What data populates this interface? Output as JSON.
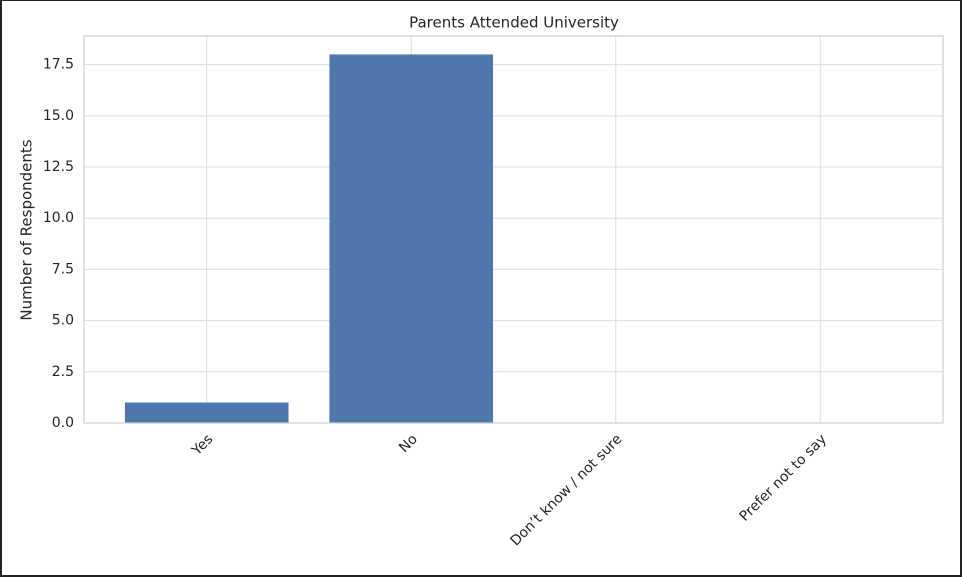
{
  "chart_data": {
    "type": "bar",
    "title": "Parents Attended University",
    "y_label": "Number of Respondents",
    "categories": [
      "Yes",
      "No",
      "Don’t know / not sure",
      "Prefer not to say"
    ],
    "values": [
      1,
      18,
      0,
      0
    ],
    "color": "#4f76ad",
    "ylim": [
      0,
      18.9
    ],
    "yticks": [
      {
        "value": 0,
        "label": "0.0"
      },
      2.5,
      {
        "value": 5,
        "label": "5.0"
      },
      7.5,
      {
        "value": 10,
        "label": "10.0"
      },
      12.5,
      {
        "value": 15,
        "label": "15.0"
      },
      17.5
    ],
    "grid": true
  }
}
